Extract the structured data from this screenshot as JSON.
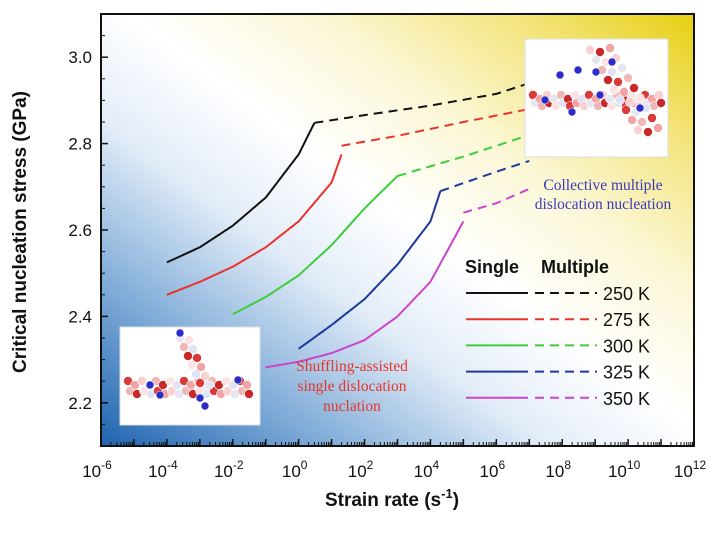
{
  "chart_data": {
    "type": "line",
    "title": "",
    "xlabel": "Strain rate (s",
    "xlabel_sup": "-1",
    "xlabel_close": ")",
    "ylabel": "Critical nucleation stress (GPa)",
    "x_scale": "log",
    "xlim": [
      1e-06,
      1000000000000.0
    ],
    "ylim": [
      2.1,
      3.1
    ],
    "x_ticks": [
      {
        "base": "10",
        "exp": "-6",
        "value": 1e-06
      },
      {
        "base": "10",
        "exp": "-4",
        "value": 0.0001
      },
      {
        "base": "10",
        "exp": "-2",
        "value": 0.01
      },
      {
        "base": "10",
        "exp": "0",
        "value": 1
      },
      {
        "base": "10",
        "exp": "2",
        "value": 100.0
      },
      {
        "base": "10",
        "exp": "4",
        "value": 10000.0
      },
      {
        "base": "10",
        "exp": "6",
        "value": 1000000.0
      },
      {
        "base": "10",
        "exp": "8",
        "value": 100000000.0
      },
      {
        "base": "10",
        "exp": "10",
        "value": 10000000000.0
      },
      {
        "base": "10",
        "exp": "12",
        "value": 1000000000000.0
      }
    ],
    "y_ticks": [
      "2.2",
      "2.4",
      "2.6",
      "2.8",
      "3.0"
    ],
    "y_tick_values": [
      2.2,
      2.4,
      2.6,
      2.8,
      3.0
    ],
    "grid": false,
    "legend": {
      "position": "right",
      "header_single": "Single",
      "header_multiple": "Multiple"
    },
    "series": [
      {
        "name": "250 K",
        "color": "#111111",
        "style": "solid",
        "x": [
          0.0001,
          0.001,
          0.01,
          0.1,
          1,
          3
        ],
        "y": [
          2.525,
          2.56,
          2.61,
          2.675,
          2.775,
          2.848
        ]
      },
      {
        "name": "250 K",
        "color": "#111111",
        "style": "dashed",
        "x": [
          3,
          100.0,
          10000.0,
          1000000.0,
          10000000.0
        ],
        "y": [
          2.848,
          2.866,
          2.888,
          2.915,
          2.94
        ]
      },
      {
        "name": "275 K",
        "color": "#e8342a",
        "style": "solid",
        "x": [
          0.0001,
          0.001,
          0.01,
          0.1,
          1,
          10,
          20
        ],
        "y": [
          2.45,
          2.48,
          2.515,
          2.56,
          2.62,
          2.71,
          2.775
        ]
      },
      {
        "name": "275 K",
        "color": "#e8342a",
        "style": "dashed",
        "x": [
          20,
          1000.0,
          100000.0,
          10000000.0
        ],
        "y": [
          2.795,
          2.818,
          2.85,
          2.88
        ]
      },
      {
        "name": "300 K",
        "color": "#3fcc3a",
        "style": "solid",
        "x": [
          0.01,
          0.1,
          1,
          10,
          100,
          1000
        ],
        "y": [
          2.405,
          2.445,
          2.495,
          2.565,
          2.65,
          2.725
        ]
      },
      {
        "name": "300 K",
        "color": "#3fcc3a",
        "style": "dashed",
        "x": [
          1000,
          100000.0,
          10000000.0
        ],
        "y": [
          2.725,
          2.77,
          2.82
        ]
      },
      {
        "name": "325 K",
        "color": "#1c3a9e",
        "style": "solid",
        "x": [
          1,
          10,
          100,
          1000,
          10000.0,
          20000.0
        ],
        "y": [
          2.325,
          2.38,
          2.44,
          2.52,
          2.62,
          2.69
        ]
      },
      {
        "name": "325 K",
        "color": "#1c3a9e",
        "style": "dashed",
        "x": [
          20000.0,
          1000000.0,
          10000000.0
        ],
        "y": [
          2.69,
          2.735,
          2.76
        ]
      },
      {
        "name": "350 K",
        "color": "#cc44cc",
        "style": "solid",
        "x": [
          0.1,
          1,
          10,
          100,
          1000,
          10000.0,
          100000.0
        ],
        "y": [
          2.282,
          2.295,
          2.315,
          2.345,
          2.4,
          2.48,
          2.62
        ]
      },
      {
        "name": "350 K",
        "color": "#cc44cc",
        "style": "dashed",
        "x": [
          100000.0,
          1000000.0,
          10000000.0
        ],
        "y": [
          2.64,
          2.662,
          2.695
        ]
      }
    ],
    "legend_entries": [
      "250 K",
      "275 K",
      "300 K",
      "325 K",
      "350 K"
    ],
    "legend_colors": [
      "#111111",
      "#e8342a",
      "#3fcc3a",
      "#1c3a9e",
      "#cc44cc"
    ],
    "annotations": {
      "collective_line1": "Collective multiple",
      "collective_line2": "dislocation nucleation",
      "collective_color": "#3a3ab8",
      "shuffling_line1": "Shuffling-assisted",
      "shuffling_line2": "single dislocation",
      "shuffling_line3": "nuclation",
      "shuffling_color": "#e8342a"
    },
    "background": {
      "gradient_from": "#1a5fa8",
      "gradient_mid": "#ffffff",
      "gradient_to": "#e8d21a"
    }
  }
}
